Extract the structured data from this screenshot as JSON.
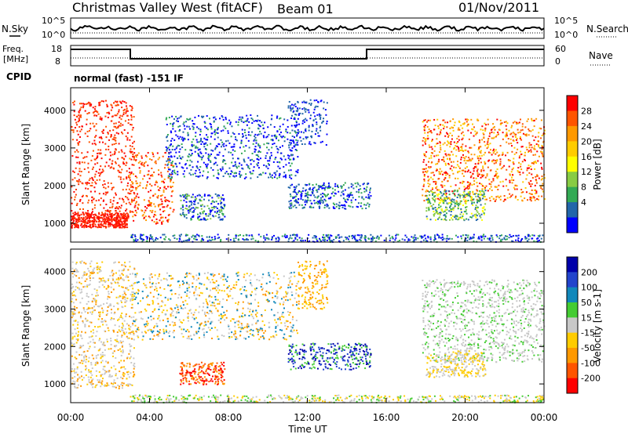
{
  "header": {
    "station": "Christmas Valley West (fitACF)",
    "beam": "Beam 01",
    "date": "01/Nov/2011"
  },
  "noise_panel": {
    "left_label": "N.Sky",
    "right_label": "N.Search",
    "ticks": [
      "10^5",
      "10^0"
    ]
  },
  "freq_panel": {
    "left_label_line1": "Freq.",
    "left_label_line2": "[MHz]",
    "right_label": "Nave",
    "left_ticks": [
      "18",
      "8"
    ],
    "right_ticks": [
      "60",
      "0"
    ]
  },
  "cpid": {
    "label": "CPID",
    "value": "normal (fast) -151 IF"
  },
  "chart_data": [
    {
      "type": "heatmap",
      "name": "power",
      "ylabel": "Slant Range [km]",
      "yticks": [
        1000,
        2000,
        3000,
        4000
      ],
      "ylim": [
        500,
        4600
      ],
      "colorbar": {
        "label": "Power [dB]",
        "ticks": [
          "28",
          "24",
          "20",
          "16",
          "12",
          "8",
          "4"
        ],
        "colors": [
          "#ff0000",
          "#ff5500",
          "#ff9900",
          "#ffcc00",
          "#ffff00",
          "#88cc44",
          "#33aa55",
          "#2266aa",
          "#0000ff"
        ]
      }
    },
    {
      "type": "heatmap",
      "name": "velocity",
      "ylabel": "Slant Range [km]",
      "yticks": [
        1000,
        2000,
        3000,
        4000
      ],
      "ylim": [
        500,
        4600
      ],
      "colorbar": {
        "label": "Velocity [m s-1]",
        "ticks": [
          "200",
          "100",
          "50",
          "15",
          "-15",
          "-50",
          "-100",
          "-200"
        ],
        "colors": [
          "#0000aa",
          "#2244cc",
          "#1188bb",
          "#44cc33",
          "#c8c8c8",
          "#ffcc00",
          "#ff9900",
          "#ff5500",
          "#ff0000"
        ]
      }
    }
  ],
  "time_axis": {
    "label": "Time UT",
    "ticks": [
      "00:00",
      "04:00",
      "08:00",
      "12:00",
      "16:00",
      "20:00",
      "00:00"
    ]
  }
}
